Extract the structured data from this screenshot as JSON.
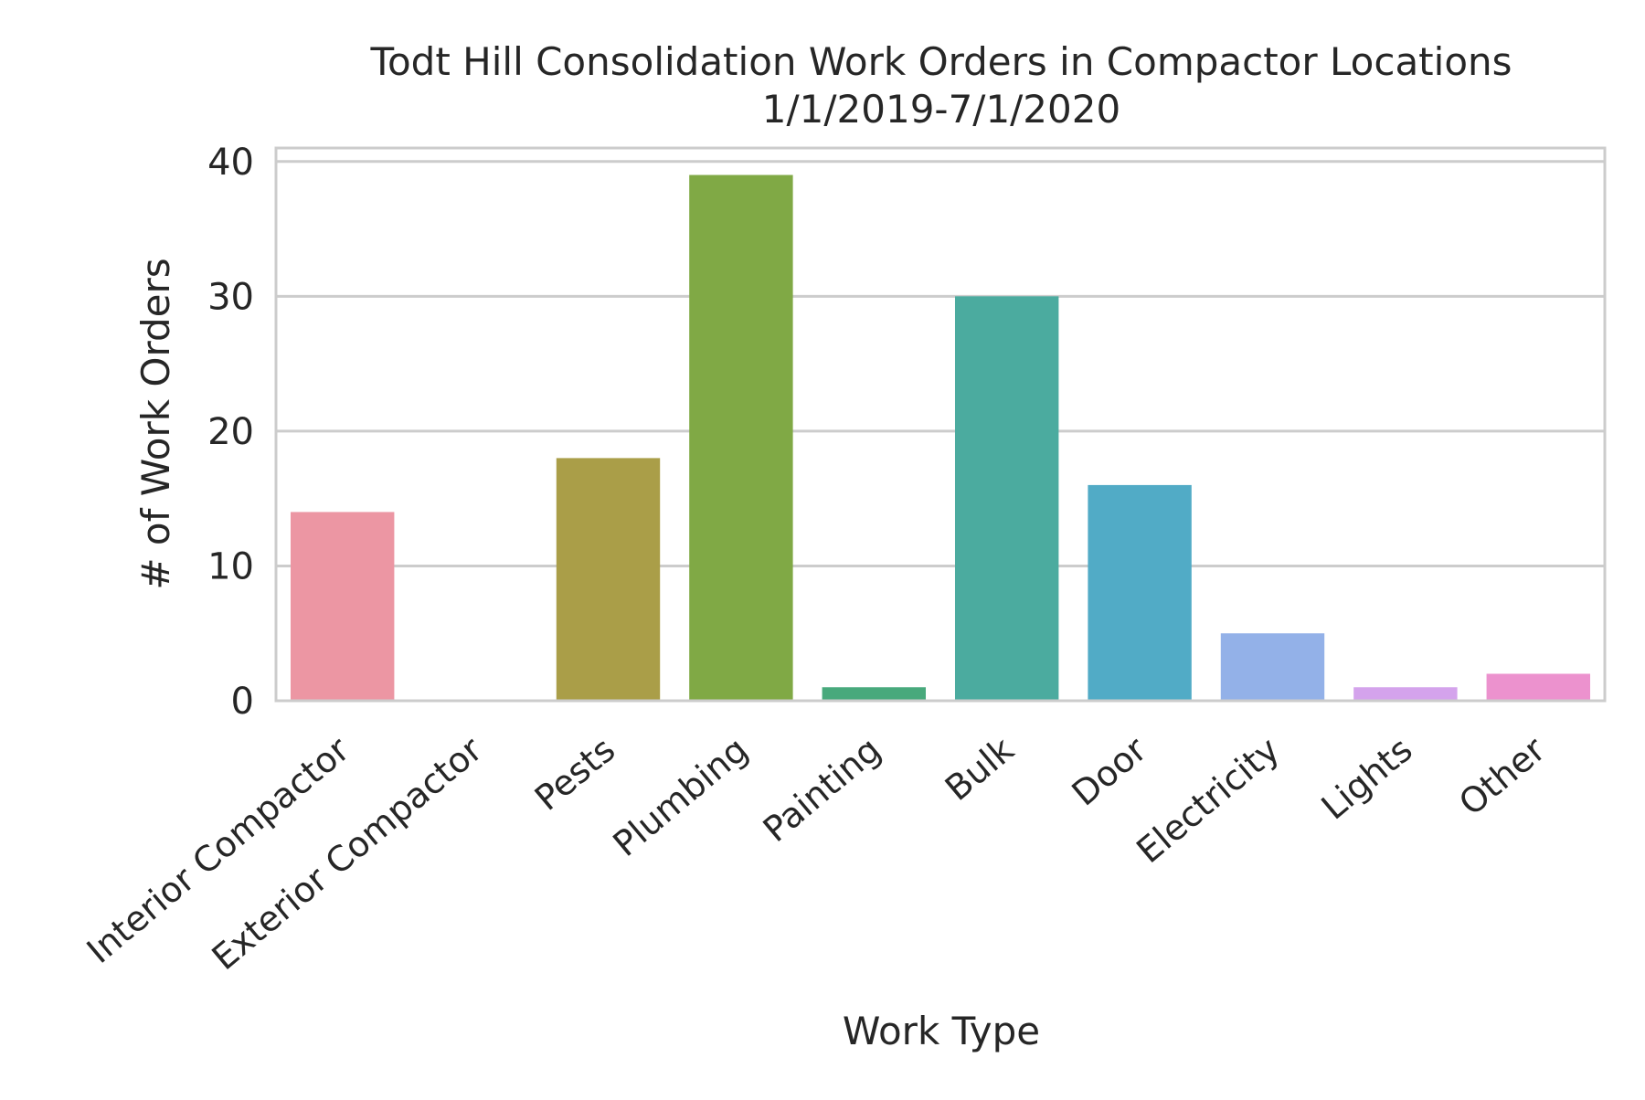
{
  "chart_data": {
    "type": "bar",
    "title": [
      "Todt Hill Consolidation Work Orders in Compactor Locations",
      "1/1/2019-7/1/2020"
    ],
    "xlabel": "Work Type",
    "ylabel": "# of Work Orders",
    "categories": [
      "Interior Compactor",
      "Exterior Compactor",
      "Pests",
      "Plumbing",
      "Painting",
      "Bulk",
      "Door",
      "Electricity",
      "Lights",
      "Other"
    ],
    "values": [
      14,
      0,
      18,
      39,
      1,
      30,
      16,
      5,
      1,
      2
    ],
    "colors": [
      "#ec96a3",
      "#d6a24f",
      "#aa9e48",
      "#80a945",
      "#48a97c",
      "#4bab9f",
      "#51abc6",
      "#93b1e8",
      "#d4a3ec",
      "#ec92ce"
    ],
    "ylim": [
      0,
      41
    ],
    "yticks": [
      0,
      10,
      20,
      30,
      40
    ],
    "grid": true,
    "legend": "none"
  }
}
